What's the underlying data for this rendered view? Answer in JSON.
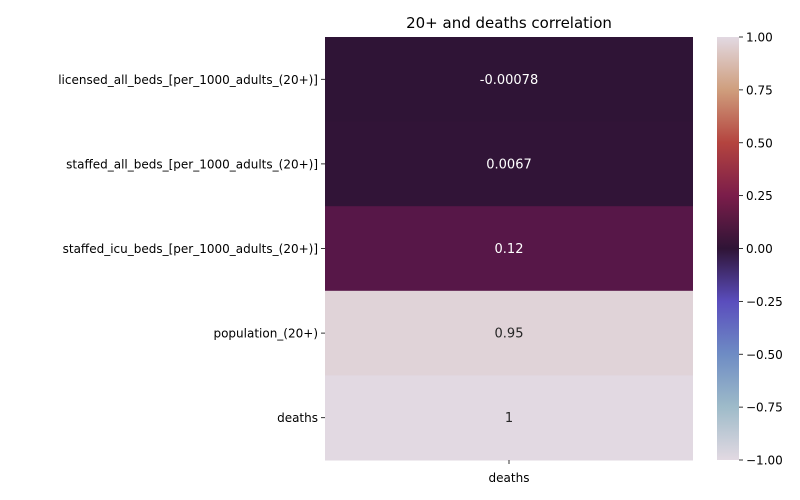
{
  "chart_data": {
    "type": "heatmap",
    "title": "20+ and deaths correlation",
    "xlabel": "",
    "ylabel": "",
    "columns": [
      "deaths"
    ],
    "rows": [
      "licensed_all_beds_[per_1000_adults_(20+)]",
      "staffed_all_beds_[per_1000_adults_(20+)]",
      "staffed_icu_beds_[per_1000_adults_(20+)]",
      "population_(20+)",
      "deaths"
    ],
    "values": [
      -0.00078,
      0.0067,
      0.12,
      0.95,
      1
    ],
    "cell_labels": [
      "-0.00078",
      "0.0067",
      "0.12",
      "0.95",
      "1"
    ],
    "vmin": -1,
    "vmax": 1,
    "colormap": "twilight",
    "colorbar": {
      "ticks": [
        1.0,
        0.75,
        0.5,
        0.25,
        0.0,
        -0.25,
        -0.5,
        -0.75,
        -1.0
      ],
      "tick_labels": [
        "1.00",
        "0.75",
        "0.50",
        "0.25",
        "0.00",
        "−0.25",
        "−0.50",
        "−0.75",
        "−1.00"
      ],
      "placement": "right"
    },
    "grid": false
  }
}
